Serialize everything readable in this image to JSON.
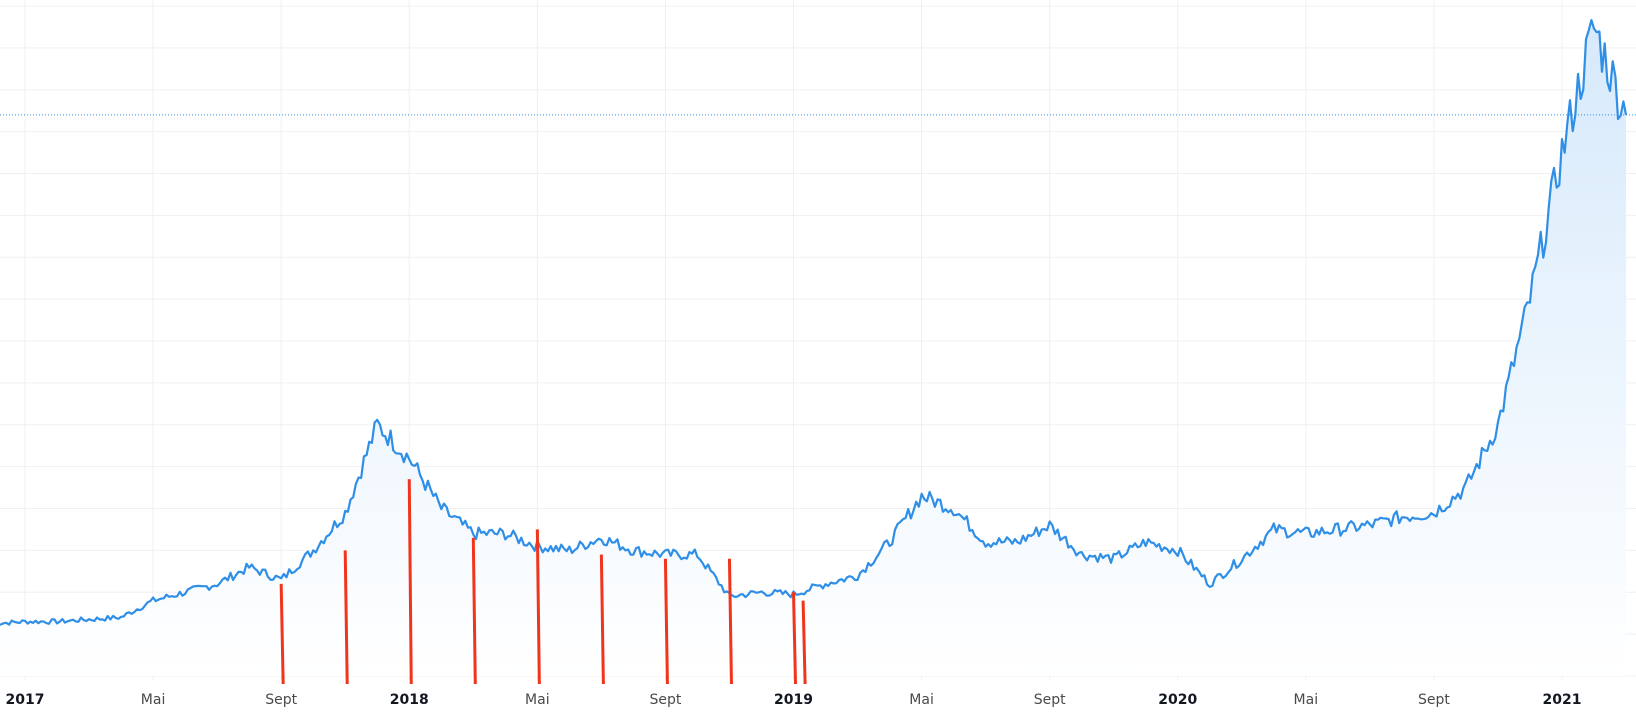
{
  "chart_data": {
    "type": "area",
    "title": "",
    "xlabel": "",
    "ylabel": "",
    "grid": true,
    "colors": {
      "line": "#2f8fe6",
      "fill_top": "#d6e9fb",
      "fill_bottom": "#ffffff",
      "markers": "#f1351d",
      "reference_line": "#2f8fe6",
      "grid": "#eef0f3"
    },
    "x_ticks": [
      {
        "label": "2017",
        "date": "2017-01",
        "major": true
      },
      {
        "label": "Mai",
        "date": "2017-05",
        "major": false
      },
      {
        "label": "Sept",
        "date": "2017-09",
        "major": false
      },
      {
        "label": "2018",
        "date": "2018-01",
        "major": true
      },
      {
        "label": "Mai",
        "date": "2018-05",
        "major": false
      },
      {
        "label": "Sept",
        "date": "2018-09",
        "major": false
      },
      {
        "label": "2019",
        "date": "2019-01",
        "major": true
      },
      {
        "label": "Mai",
        "date": "2019-05",
        "major": false
      },
      {
        "label": "Sept",
        "date": "2019-09",
        "major": false
      },
      {
        "label": "2020",
        "date": "2020-01",
        "major": true
      },
      {
        "label": "Mai",
        "date": "2020-05",
        "major": false
      },
      {
        "label": "Sept",
        "date": "2020-09",
        "major": false
      },
      {
        "label": "2021",
        "date": "2021-01",
        "major": true
      }
    ],
    "y_range_relative": [
      0,
      16
    ],
    "reference_level": 13.4,
    "series": [
      {
        "x": [
          "2016-12",
          "2017-01",
          "2017-02",
          "2017-03",
          "2017-04",
          "2017-05",
          "2017-06",
          "2017-07",
          "2017-08",
          "2017-09",
          "2017-10",
          "2017-11",
          "2017-12",
          "2018-01",
          "2018-02",
          "2018-03",
          "2018-04",
          "2018-05",
          "2018-06",
          "2018-07",
          "2018-08",
          "2018-09",
          "2018-10",
          "2018-11",
          "2018-12",
          "2019-01",
          "2019-02",
          "2019-03",
          "2019-04",
          "2019-05",
          "2019-06",
          "2019-07",
          "2019-08",
          "2019-09",
          "2019-10",
          "2019-11",
          "2019-12",
          "2020-01",
          "2020-02",
          "2020-03",
          "2020-04",
          "2020-05",
          "2020-06",
          "2020-07",
          "2020-08",
          "2020-09",
          "2020-10",
          "2020-11",
          "2020-12",
          "2021-01",
          "2021-02",
          "2021-03"
        ],
        "y": [
          1.25,
          1.3,
          1.3,
          1.35,
          1.4,
          1.8,
          2.0,
          2.2,
          2.6,
          2.3,
          3.0,
          3.9,
          6.0,
          5.2,
          4.0,
          3.4,
          3.4,
          3.1,
          3.0,
          3.3,
          3.0,
          2.9,
          2.9,
          1.9,
          2.0,
          1.95,
          2.2,
          2.4,
          3.2,
          4.3,
          4.0,
          3.2,
          3.2,
          3.6,
          2.9,
          2.8,
          3.2,
          3.0,
          2.2,
          2.8,
          3.5,
          3.4,
          3.5,
          3.6,
          3.8,
          3.9,
          4.5,
          6.0,
          9.0,
          12.5,
          15.5,
          13.4
        ]
      }
    ],
    "markers": [
      {
        "date": "2017-09",
        "top_y": 2.2
      },
      {
        "date": "2017-11",
        "top_y": 3.0
      },
      {
        "date": "2018-01",
        "top_y": 4.7
      },
      {
        "date": "2018-03",
        "top_y": 3.3
      },
      {
        "date": "2018-05",
        "top_y": 3.5
      },
      {
        "date": "2018-07",
        "top_y": 2.9
      },
      {
        "date": "2018-09",
        "top_y": 2.8
      },
      {
        "date": "2018-11",
        "top_y": 2.8
      },
      {
        "date": "2019-01",
        "top_y": 2.0
      },
      {
        "date": "2019-01",
        "top_y": 1.8
      }
    ]
  }
}
